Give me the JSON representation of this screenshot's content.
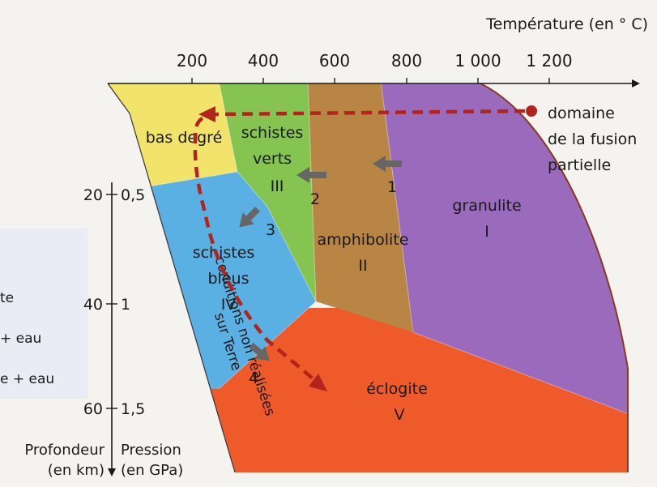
{
  "colors": {
    "bas_degre": "#f2e36a",
    "schistes_verts": "#86c451",
    "amphibolite": "#b98545",
    "granulite": "#9a6bbd",
    "schistes_bleus": "#5ab0e2",
    "eclogite": "#ef5a2a",
    "path": "#b3241c",
    "arrow": "#666666",
    "melt_curve": "#8a3a1a"
  },
  "axes": {
    "temperature_title": "Température (en ° C)",
    "temperature_ticks": [
      "200",
      "400",
      "600",
      "800",
      "1 000",
      "1 200"
    ],
    "depth_ticks": [
      "20",
      "40",
      "60"
    ],
    "pressure_ticks": [
      "0,5",
      "1",
      "1,5"
    ],
    "depth_title": [
      "Profondeur",
      "(en km)"
    ],
    "pressure_title": [
      "Pression",
      "(en GPa)"
    ]
  },
  "facies": {
    "bas_degre": "bas degré",
    "schistes_verts": [
      "schistes",
      "verts",
      "III"
    ],
    "amphibolite": [
      "amphibolite",
      "II"
    ],
    "granulite": [
      "granulite",
      "I"
    ],
    "schistes_bleus": [
      "schistes",
      "bleus",
      "IV"
    ],
    "eclogite": [
      "éclogite",
      "V"
    ]
  },
  "fusion_label": [
    "domaine",
    "de la fusion",
    "partielle"
  ],
  "non_realisees": [
    "conditions non réalisées",
    "sur Terre"
  ],
  "path_numbers": [
    "1",
    "2",
    "3",
    "4"
  ],
  "legend_partial": [
    "te",
    "+ eau",
    "e + eau"
  ]
}
